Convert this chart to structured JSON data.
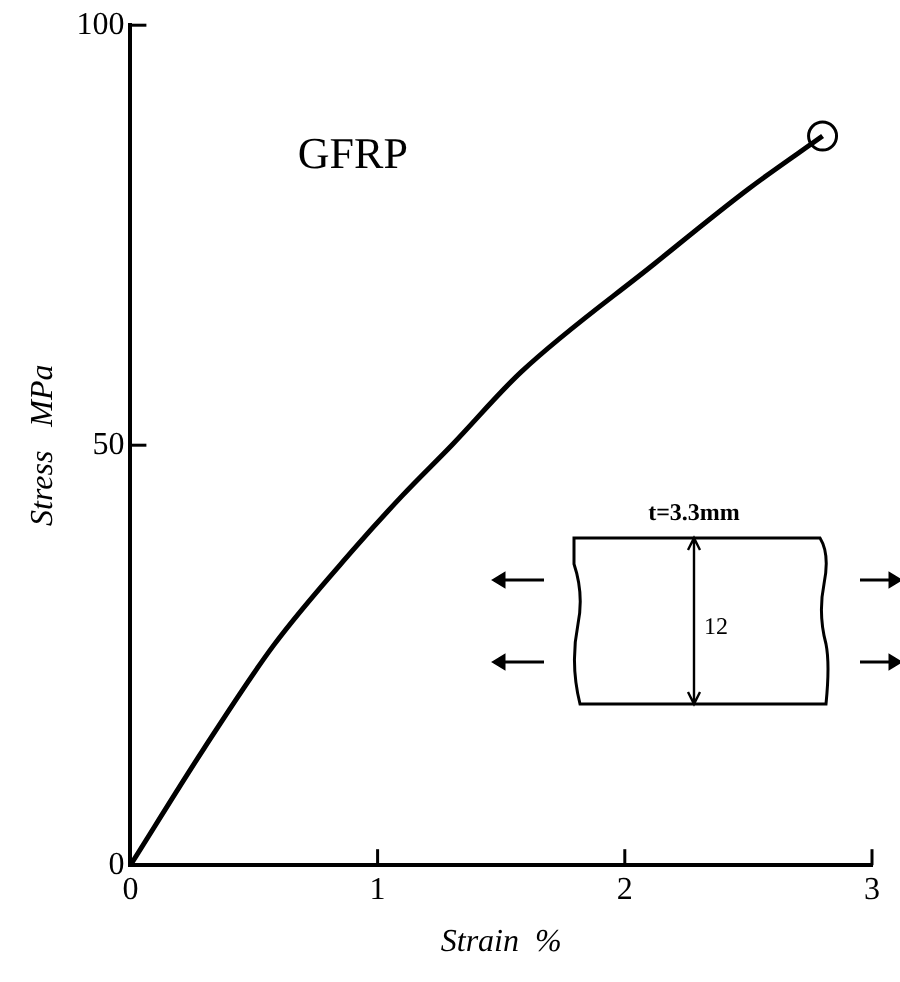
{
  "chart_data": {
    "type": "line",
    "title": "GFRP",
    "xlabel": "Strain  %",
    "ylabel": "Stress   MPa",
    "annotations": [
      "t=3.3mm",
      "12"
    ],
    "xlim": [
      0,
      3
    ],
    "xticks": [
      0,
      1,
      2,
      3
    ],
    "ylim": [
      0,
      100
    ],
    "yticks": [
      0,
      50,
      100
    ],
    "grid": false,
    "legend": false,
    "series": [
      {
        "color": "#000000",
        "marker": "none",
        "x": [
          0,
          0.3,
          0.58,
          0.9,
          1.1,
          1.3,
          1.58,
          2.12,
          2.5,
          2.8
        ],
        "values": [
          0,
          14,
          26.2,
          37.5,
          44,
          50,
          58.7,
          71.6,
          80.5,
          86.8
        ]
      },
      {
        "type": "scatter",
        "color": "#000000",
        "marker": "circle",
        "x": [
          2.8
        ],
        "values": [
          86.8
        ]
      }
    ]
  }
}
